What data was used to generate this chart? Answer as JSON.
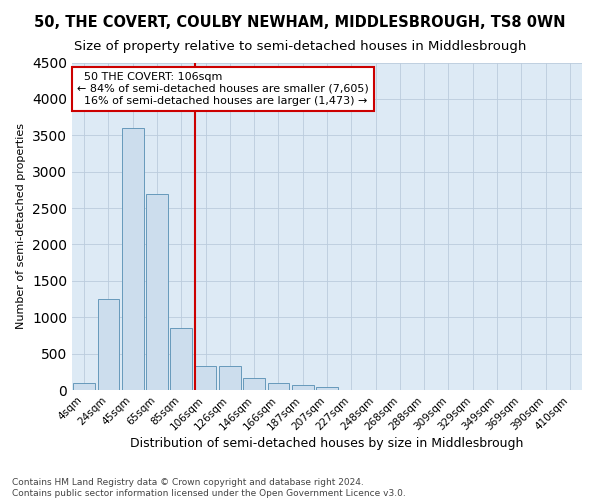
{
  "title": "50, THE COVERT, COULBY NEWHAM, MIDDLESBROUGH, TS8 0WN",
  "subtitle": "Size of property relative to semi-detached houses in Middlesbrough",
  "xlabel": "Distribution of semi-detached houses by size in Middlesbrough",
  "ylabel": "Number of semi-detached properties",
  "categories": [
    "4sqm",
    "24sqm",
    "45sqm",
    "65sqm",
    "85sqm",
    "106sqm",
    "126sqm",
    "146sqm",
    "166sqm",
    "187sqm",
    "207sqm",
    "227sqm",
    "248sqm",
    "268sqm",
    "288sqm",
    "309sqm",
    "329sqm",
    "349sqm",
    "369sqm",
    "390sqm",
    "410sqm"
  ],
  "values": [
    100,
    1250,
    3600,
    2700,
    850,
    330,
    330,
    170,
    100,
    70,
    40,
    0,
    0,
    0,
    0,
    0,
    0,
    0,
    0,
    0,
    0
  ],
  "property_size_label": "50 THE COVERT: 106sqm",
  "pct_smaller": 84,
  "count_smaller": 7605,
  "pct_larger": 16,
  "count_larger": 1473,
  "bar_color": "#ccdded",
  "bar_edge_color": "#6699bb",
  "vline_color": "#cc0000",
  "annotation_box_edge": "#cc0000",
  "ylim": [
    0,
    4500
  ],
  "yticks": [
    0,
    500,
    1000,
    1500,
    2000,
    2500,
    3000,
    3500,
    4000,
    4500
  ],
  "grid_color": "#bbccdd",
  "bg_color": "#ddeaf5",
  "title_fontsize": 10.5,
  "subtitle_fontsize": 9.5,
  "footer": "Contains HM Land Registry data © Crown copyright and database right 2024.\nContains public sector information licensed under the Open Government Licence v3.0."
}
